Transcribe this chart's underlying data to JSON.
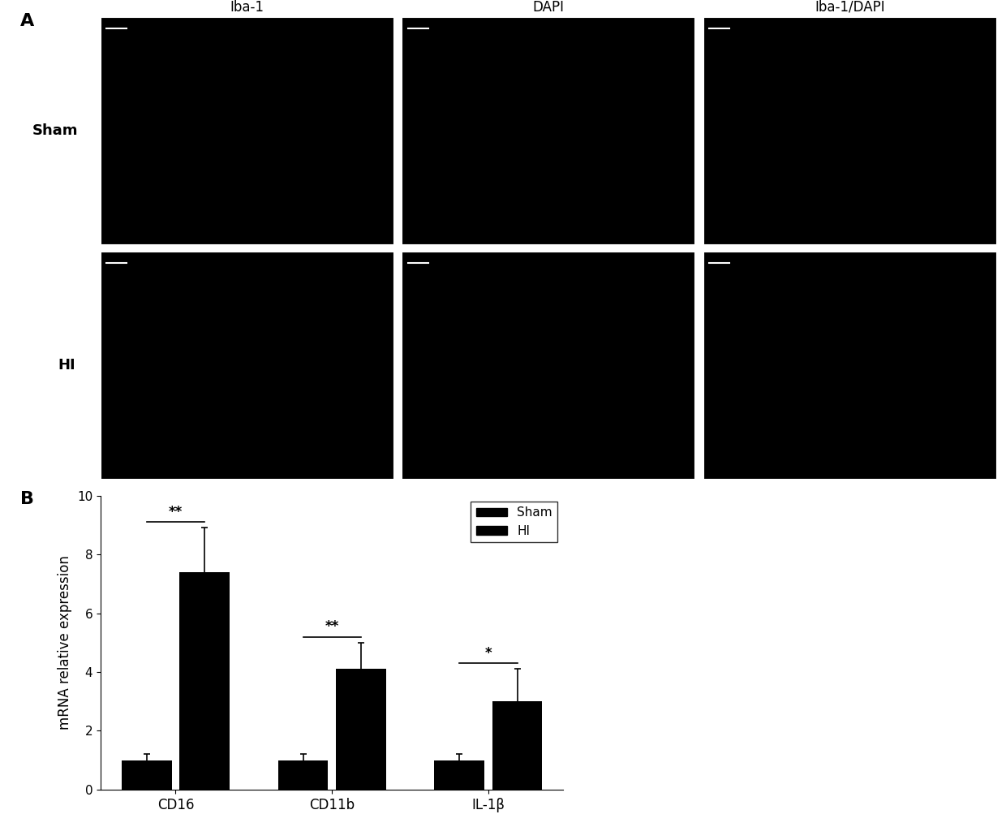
{
  "panel_A_label": "A",
  "panel_B_label": "B",
  "col_titles": [
    "Iba-1",
    "DAPI",
    "Iba-1/DAPI"
  ],
  "row_labels": [
    "Sham",
    "HI"
  ],
  "bar_categories": [
    "CD16",
    "CD11b",
    "IL-1β"
  ],
  "sham_values": [
    1.0,
    1.0,
    1.0
  ],
  "hi_values": [
    7.4,
    4.1,
    3.0
  ],
  "sham_errors": [
    0.2,
    0.2,
    0.2
  ],
  "hi_errors": [
    1.5,
    0.9,
    1.1
  ],
  "bar_color_sham": "#000000",
  "bar_color_hi": "#555555",
  "bar_hatch_hi": "///",
  "ylabel": "mRNA relative expression",
  "ylim": [
    0,
    10
  ],
  "yticks": [
    0,
    2,
    4,
    6,
    8,
    10
  ],
  "significance": [
    "**",
    "**",
    "*"
  ],
  "legend_labels": [
    "Sham",
    "HI"
  ],
  "image_panel_bg": "#000000"
}
